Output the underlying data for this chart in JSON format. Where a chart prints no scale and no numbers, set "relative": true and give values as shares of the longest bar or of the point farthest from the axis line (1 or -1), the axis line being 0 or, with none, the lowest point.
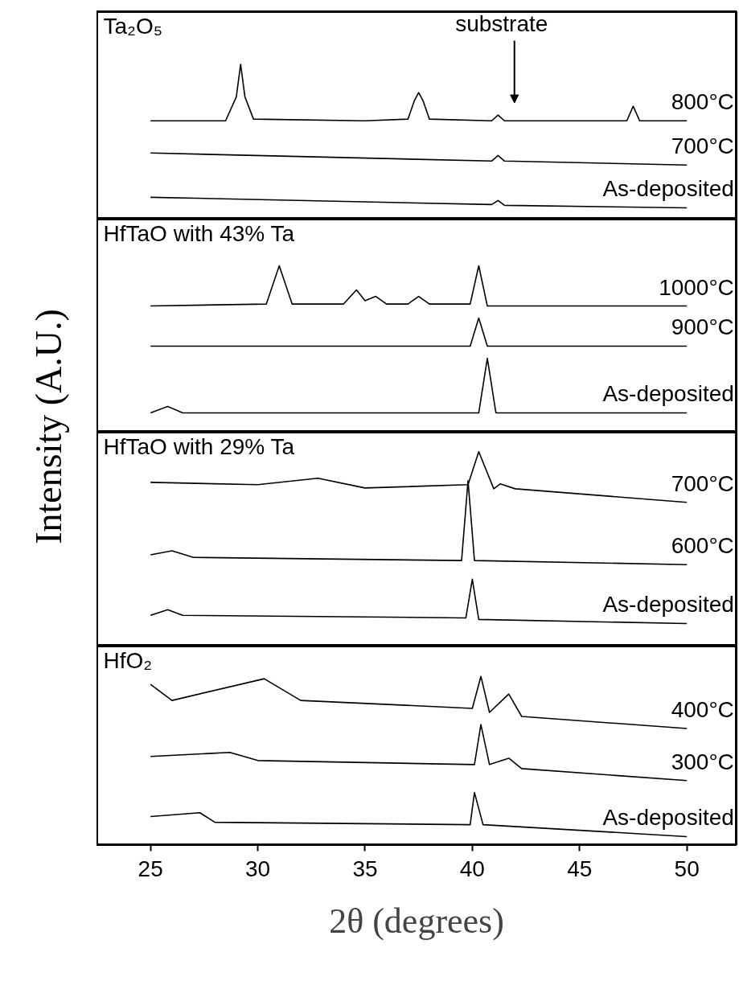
{
  "chart_data": [
    {
      "type": "line",
      "title": "Ta₂O₅",
      "ylabel": "Intensity (A.U.)",
      "relative": true,
      "xlim": [
        22.5,
        52.3
      ],
      "xticks": [
        25,
        30,
        35,
        40,
        45,
        50
      ],
      "tick_labels": false,
      "grid": false,
      "marker": "none",
      "line_style": "solid",
      "annotations": [
        "substrate"
      ],
      "series": [
        {
          "name": "800°C",
          "color": "#000000",
          "x": [
            25,
            28.5,
            29.0,
            29.2,
            29.4,
            29.8,
            35,
            37.0,
            37.3,
            37.5,
            37.7,
            38.0,
            40.9,
            41.2,
            41.5,
            47.2,
            47.5,
            47.8,
            50
          ],
          "values": [
            0.635,
            0.635,
            0.79,
            1.0,
            0.79,
            0.646,
            0.635,
            0.646,
            0.766,
            0.818,
            0.766,
            0.646,
            0.635,
            0.672,
            0.635,
            0.635,
            0.729,
            0.635,
            0.635
          ]
        },
        {
          "name": "700°C",
          "color": "#000000",
          "x": [
            25,
            40.9,
            41.2,
            41.5,
            50
          ],
          "values": [
            0.427,
            0.375,
            0.411,
            0.375,
            0.349
          ]
        },
        {
          "name": "As-deposited",
          "color": "#000000",
          "x": [
            25,
            40.9,
            41.2,
            41.5,
            50
          ],
          "values": [
            0.141,
            0.094,
            0.12,
            0.089,
            0.073
          ]
        }
      ]
    },
    {
      "type": "line",
      "title": "HfTaO with 43% Ta",
      "relative": true,
      "xlim": [
        22.5,
        52.3
      ],
      "xticks": [
        25,
        30,
        35,
        40,
        45,
        50
      ],
      "tick_labels": false,
      "grid": false,
      "marker": "none",
      "line_style": "solid",
      "series": [
        {
          "name": "1000°C",
          "color": "#000000",
          "x": [
            25,
            30.4,
            31.0,
            31.6,
            34.0,
            34.6,
            35.0,
            35.5,
            36.0,
            37.0,
            37.5,
            38.0,
            39.9,
            40.3,
            40.7,
            50
          ],
          "values": [
            0.758,
            0.77,
            1.0,
            0.77,
            0.77,
            0.855,
            0.79,
            0.816,
            0.77,
            0.77,
            0.816,
            0.77,
            0.77,
            1.0,
            0.758,
            0.758
          ]
        },
        {
          "name": "900°C",
          "color": "#000000",
          "x": [
            25,
            39.9,
            40.3,
            40.7,
            50
          ],
          "values": [
            0.517,
            0.517,
            0.686,
            0.517,
            0.517
          ]
        },
        {
          "name": "As-deposited",
          "color": "#000000",
          "x": [
            25,
            25.8,
            26.5,
            40.3,
            40.7,
            41.1,
            50
          ],
          "values": [
            0.116,
            0.155,
            0.116,
            0.116,
            0.444,
            0.116,
            0.116
          ]
        }
      ]
    },
    {
      "type": "line",
      "title": "HfTaO with 29% Ta",
      "relative": true,
      "xlim": [
        22.5,
        52.3
      ],
      "xticks": [
        25,
        30,
        35,
        40,
        45,
        50
      ],
      "tick_labels": false,
      "grid": false,
      "marker": "none",
      "line_style": "solid",
      "series": [
        {
          "name": "700°C",
          "color": "#000000",
          "x": [
            25,
            30,
            32.8,
            35,
            39.8,
            40.3,
            41.0,
            41.3,
            42,
            50
          ],
          "values": [
            0.842,
            0.83,
            0.863,
            0.813,
            0.83,
            1.0,
            0.809,
            0.834,
            0.809,
            0.739
          ]
        },
        {
          "name": "600°C",
          "color": "#000000",
          "x": [
            25,
            26,
            27,
            39.5,
            39.8,
            40.1,
            50
          ],
          "values": [
            0.469,
            0.49,
            0.456,
            0.44,
            0.851,
            0.44,
            0.419
          ]
        },
        {
          "name": "As-deposited",
          "color": "#000000",
          "x": [
            25,
            25.8,
            26.5,
            39.7,
            40.0,
            40.3,
            50
          ],
          "values": [
            0.158,
            0.187,
            0.158,
            0.145,
            0.344,
            0.137,
            0.116
          ]
        }
      ]
    },
    {
      "type": "line",
      "title": "HfO₂",
      "xlabel": "2θ (degrees)",
      "relative": true,
      "xlim": [
        22.5,
        52.3
      ],
      "xticks": [
        25,
        30,
        35,
        40,
        45,
        50
      ],
      "tick_labels": "x",
      "grid": false,
      "marker": "none",
      "line_style": "solid",
      "series": [
        {
          "name": "400°C",
          "color": "#000000",
          "x": [
            25,
            26,
            30.3,
            32,
            40,
            40.4,
            40.8,
            41.7,
            42.3,
            50
          ],
          "values": [
            0.952,
            0.857,
            0.986,
            0.857,
            0.81,
            1.0,
            0.786,
            0.895,
            0.762,
            0.69
          ]
        },
        {
          "name": "300°C",
          "color": "#000000",
          "x": [
            25,
            28.7,
            30,
            40.1,
            40.4,
            40.8,
            41.7,
            42.3,
            50
          ],
          "values": [
            0.524,
            0.548,
            0.5,
            0.476,
            0.714,
            0.476,
            0.514,
            0.452,
            0.381
          ]
        },
        {
          "name": "As-deposited",
          "color": "#000000",
          "x": [
            25,
            27.3,
            28,
            39.9,
            40.1,
            40.5,
            50
          ],
          "values": [
            0.167,
            0.19,
            0.133,
            0.119,
            0.31,
            0.119,
            0.048
          ]
        }
      ]
    }
  ]
}
